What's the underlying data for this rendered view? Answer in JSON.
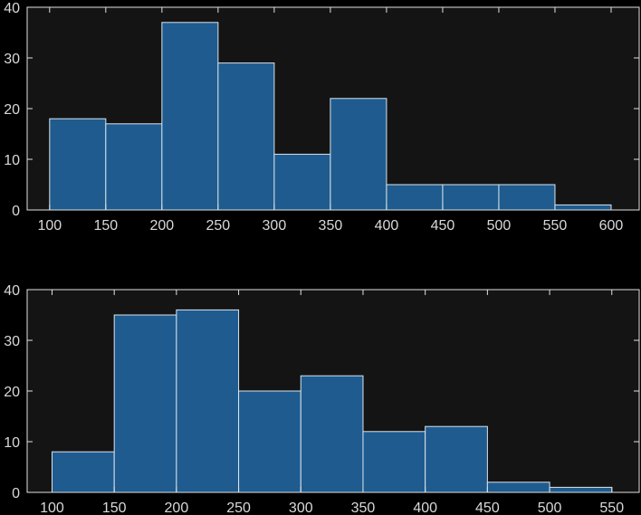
{
  "figure": {
    "background": "#000000",
    "axes_background": "#141414",
    "axis_color": "#e0e0e0",
    "text_color": "#d9d9d9"
  },
  "chart_data": [
    {
      "type": "bar",
      "subtype": "histogram",
      "title": "",
      "xlabel": "",
      "ylabel": "",
      "bin_edges": [
        100,
        150,
        200,
        250,
        300,
        350,
        400,
        450,
        500,
        550,
        600
      ],
      "values": [
        18,
        17,
        37,
        29,
        11,
        22,
        5,
        5,
        5,
        1
      ],
      "xlim": [
        80,
        625
      ],
      "ylim": [
        0,
        40
      ],
      "xticks": [
        100,
        150,
        200,
        250,
        300,
        350,
        400,
        450,
        500,
        550,
        600
      ],
      "yticks": [
        0,
        10,
        20,
        30,
        40
      ],
      "bar_color": "#1f5b8e",
      "bar_edge_color": "#d9e4ee",
      "grid": false,
      "legend": false
    },
    {
      "type": "bar",
      "subtype": "histogram",
      "title": "",
      "xlabel": "",
      "ylabel": "",
      "bin_edges": [
        100,
        150,
        200,
        250,
        300,
        350,
        400,
        450,
        500,
        550
      ],
      "values": [
        8,
        35,
        36,
        20,
        23,
        12,
        13,
        2,
        1
      ],
      "xlim": [
        80,
        572
      ],
      "ylim": [
        0,
        40
      ],
      "xticks": [
        100,
        150,
        200,
        250,
        300,
        350,
        400,
        450,
        500,
        550
      ],
      "yticks": [
        0,
        10,
        20,
        30,
        40
      ],
      "bar_color": "#1f5b8e",
      "bar_edge_color": "#d9e4ee",
      "grid": false,
      "legend": false
    }
  ]
}
